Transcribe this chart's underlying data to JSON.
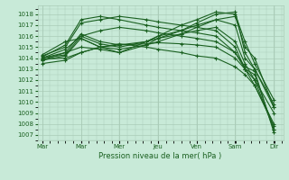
{
  "xlabel": "Pression niveau de la mer( hPa )",
  "bg_color": "#c8ead8",
  "grid_color": "#aaccb8",
  "line_color": "#1a6020",
  "ylim": [
    1006.5,
    1018.8
  ],
  "yticks": [
    1007,
    1008,
    1009,
    1010,
    1011,
    1012,
    1013,
    1014,
    1015,
    1016,
    1017,
    1018
  ],
  "xtick_labels": [
    "Mar",
    "Mar",
    "Mer",
    "Jeu",
    "Ven",
    "Sam",
    "Dir"
  ],
  "xtick_positions": [
    0,
    0.167,
    0.333,
    0.5,
    0.667,
    0.833,
    1.0
  ],
  "xlim": [
    -0.02,
    1.04
  ],
  "lines": [
    {
      "x": [
        0.0,
        0.1,
        0.167,
        0.25,
        0.333,
        0.45,
        0.5,
        0.6,
        0.667,
        0.75,
        0.833,
        0.875,
        0.917,
        1.0
      ],
      "y": [
        1013.9,
        1014.0,
        1014.5,
        1015.0,
        1015.2,
        1015.3,
        1015.4,
        1015.3,
        1015.2,
        1015.0,
        1014.0,
        1013.0,
        1012.5,
        1007.5
      ]
    },
    {
      "x": [
        0.0,
        0.1,
        0.167,
        0.25,
        0.333,
        0.45,
        0.5,
        0.6,
        0.667,
        0.75,
        0.833,
        0.875,
        0.917,
        1.0
      ],
      "y": [
        1014.0,
        1014.3,
        1016.0,
        1016.5,
        1016.8,
        1016.5,
        1016.3,
        1016.0,
        1015.8,
        1015.5,
        1014.5,
        1013.2,
        1012.8,
        1007.2
      ]
    },
    {
      "x": [
        0.0,
        0.1,
        0.167,
        0.25,
        0.333,
        0.45,
        0.5,
        0.6,
        0.667,
        0.75,
        0.833,
        0.875,
        0.917,
        1.0
      ],
      "y": [
        1014.2,
        1015.0,
        1017.2,
        1017.5,
        1017.8,
        1017.5,
        1017.3,
        1017.0,
        1016.8,
        1016.5,
        1015.0,
        1013.0,
        1012.0,
        1007.5
      ]
    },
    {
      "x": [
        0.0,
        0.1,
        0.167,
        0.25,
        0.333,
        0.45,
        0.5,
        0.6,
        0.667,
        0.75,
        0.833,
        0.875,
        0.917,
        1.0
      ],
      "y": [
        1014.1,
        1015.2,
        1017.5,
        1017.8,
        1017.5,
        1017.0,
        1016.8,
        1016.5,
        1016.3,
        1016.0,
        1014.5,
        1013.0,
        1011.5,
        1008.0
      ]
    },
    {
      "x": [
        0.0,
        0.1,
        0.167,
        0.25,
        0.333,
        0.45,
        0.5,
        0.6,
        0.667,
        0.75,
        0.833,
        0.875,
        0.917,
        1.0
      ],
      "y": [
        1013.8,
        1014.5,
        1016.2,
        1015.5,
        1015.2,
        1015.5,
        1015.8,
        1016.2,
        1016.5,
        1016.8,
        1015.5,
        1013.5,
        1012.0,
        1009.0
      ]
    },
    {
      "x": [
        0.0,
        0.1,
        0.167,
        0.25,
        0.333,
        0.45,
        0.5,
        0.6,
        0.667,
        0.75,
        0.833,
        0.875,
        0.917,
        1.0
      ],
      "y": [
        1014.0,
        1014.8,
        1016.0,
        1015.3,
        1015.0,
        1015.5,
        1016.0,
        1016.5,
        1017.0,
        1017.5,
        1017.0,
        1014.0,
        1013.0,
        1009.5
      ]
    },
    {
      "x": [
        0.0,
        0.1,
        0.167,
        0.25,
        0.333,
        0.45,
        0.5,
        0.6,
        0.667,
        0.75,
        0.833,
        0.875,
        0.917,
        1.0
      ],
      "y": [
        1013.8,
        1014.2,
        1015.8,
        1015.0,
        1014.8,
        1015.2,
        1015.8,
        1016.5,
        1017.2,
        1018.0,
        1018.2,
        1014.5,
        1013.0,
        1009.8
      ]
    },
    {
      "x": [
        0.0,
        0.1,
        0.167,
        0.25,
        0.333,
        0.45,
        0.5,
        0.6,
        0.667,
        0.75,
        0.833,
        0.875,
        0.917,
        1.0
      ],
      "y": [
        1013.5,
        1013.8,
        1014.5,
        1015.0,
        1015.3,
        1015.0,
        1014.8,
        1014.5,
        1014.2,
        1014.0,
        1013.2,
        1012.5,
        1011.5,
        1007.8
      ]
    },
    {
      "x": [
        0.0,
        0.1,
        0.167,
        0.25,
        0.333,
        0.45,
        0.5,
        0.6,
        0.667,
        0.75,
        0.833,
        0.875,
        0.917,
        1.0
      ],
      "y": [
        1014.3,
        1015.5,
        1015.8,
        1015.0,
        1014.5,
        1015.5,
        1016.0,
        1017.0,
        1017.5,
        1018.2,
        1018.0,
        1015.5,
        1013.5,
        1010.2
      ]
    },
    {
      "x": [
        0.0,
        0.1,
        0.167,
        0.25,
        0.333,
        0.45,
        0.5,
        0.6,
        0.667,
        0.75,
        0.833,
        0.875,
        0.917,
        1.0
      ],
      "y": [
        1014.0,
        1014.5,
        1015.0,
        1014.8,
        1014.5,
        1015.2,
        1015.5,
        1016.2,
        1016.8,
        1017.5,
        1017.8,
        1015.0,
        1014.0,
        1009.5
      ]
    }
  ],
  "marker": "+",
  "markersize": 2.5,
  "linewidth": 0.8
}
